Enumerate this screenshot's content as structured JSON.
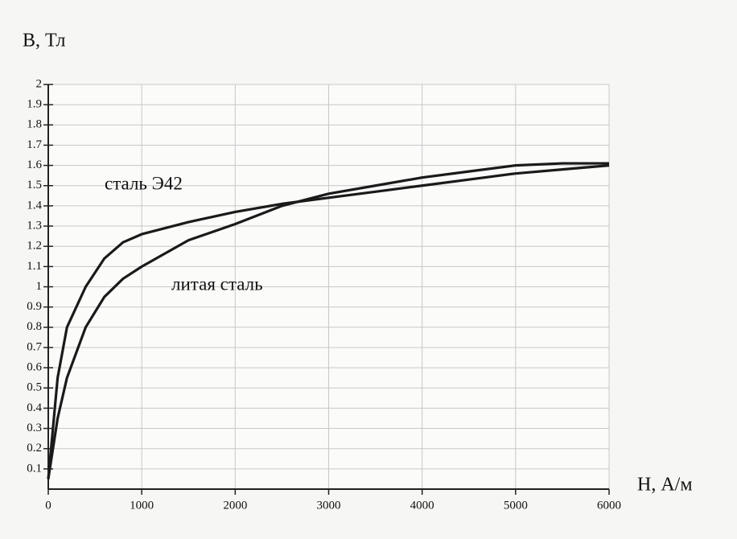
{
  "chart_data": {
    "type": "line",
    "y_label": "B, Тл",
    "x_label": "H, А/м",
    "x": [
      0,
      100,
      200,
      400,
      600,
      800,
      1000,
      1500,
      2000,
      2500,
      3000,
      3500,
      4000,
      4500,
      5000,
      5500,
      6000
    ],
    "series": [
      {
        "name": "сталь Э42",
        "color": "#1a1a1a",
        "values": [
          0.05,
          0.55,
          0.8,
          1.0,
          1.14,
          1.22,
          1.26,
          1.32,
          1.37,
          1.41,
          1.44,
          1.47,
          1.5,
          1.53,
          1.56,
          1.58,
          1.6
        ]
      },
      {
        "name": "литая сталь",
        "color": "#1a1a1a",
        "values": [
          0.05,
          0.35,
          0.55,
          0.8,
          0.95,
          1.04,
          1.1,
          1.23,
          1.31,
          1.4,
          1.46,
          1.5,
          1.54,
          1.57,
          1.6,
          1.61,
          1.61
        ]
      }
    ],
    "xlim": [
      0,
      6000
    ],
    "ylim": [
      0,
      2
    ],
    "xticks": [
      0,
      1000,
      2000,
      3000,
      4000,
      5000,
      6000
    ],
    "yticks": [
      0.1,
      0.2,
      0.3,
      0.4,
      0.5,
      0.6,
      0.7,
      0.8,
      0.9,
      1,
      1.1,
      1.2,
      1.3,
      1.4,
      1.5,
      1.6,
      1.7,
      1.8,
      1.9,
      2
    ],
    "grid": true
  }
}
